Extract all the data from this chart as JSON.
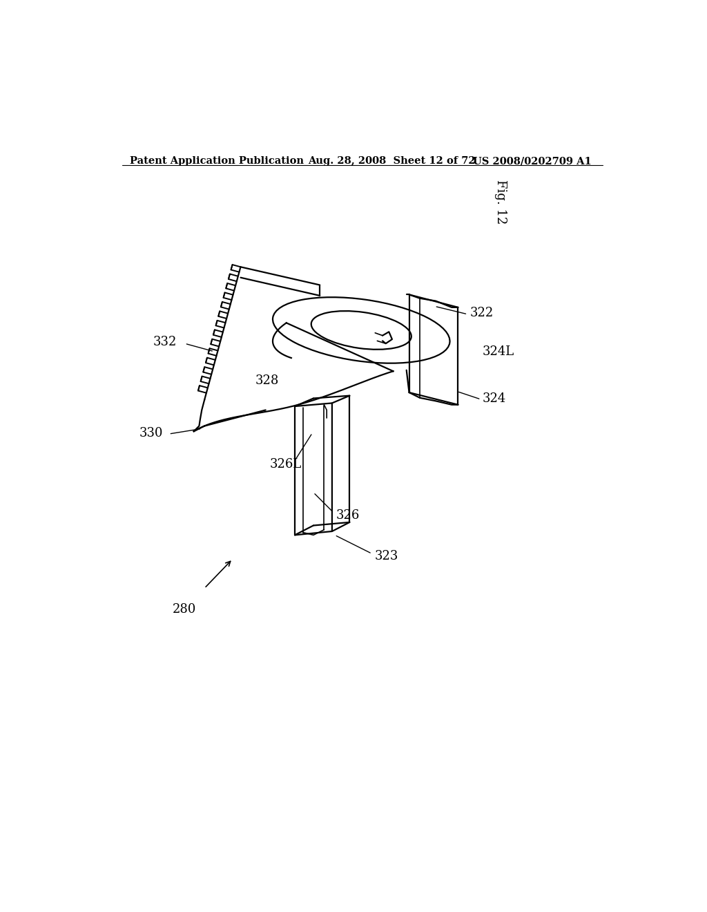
{
  "background_color": "#ffffff",
  "header_left": "Patent Application Publication",
  "header_center": "Aug. 28, 2008  Sheet 12 of 72",
  "header_right": "US 2008/0202709 A1",
  "fig_label": "Fig. 12",
  "anno_fs": 13,
  "lw_main": 1.6,
  "lw_thin": 1.2
}
